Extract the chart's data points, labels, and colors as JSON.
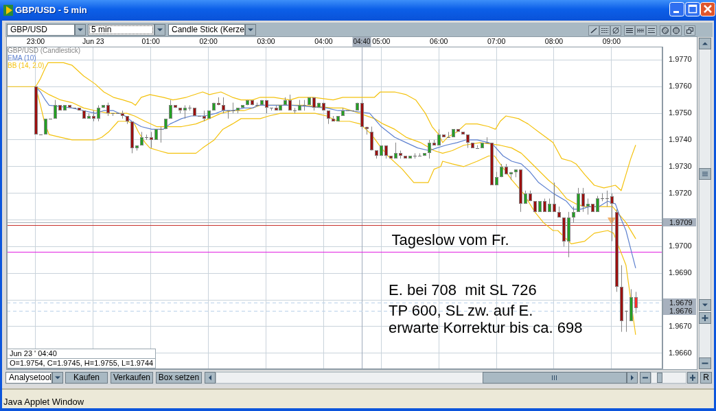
{
  "chart_data": {
    "type": "candlestick",
    "title": "GBP/USD - 5 min",
    "legend": "top left",
    "grid": true,
    "xlim": [
      "--06-22T22:30",
      "--06-23T09:53"
    ],
    "xticks": [
      {
        "value": "--06-22T23:00",
        "label": "23:00"
      },
      {
        "value": "--06-23T00:00",
        "label": "Jun 23"
      },
      {
        "value": "--06-23T01:00",
        "label": "01:00"
      },
      {
        "value": "--06-23T02:00",
        "label": "02:00"
      },
      {
        "value": "--06-23T03:00",
        "label": "03:00"
      },
      {
        "value": "--06-23T04:00",
        "label": "04:00"
      },
      {
        "value": "--06-23T05:00",
        "label": "05:00"
      },
      {
        "value": "--06-23T06:00",
        "label": "06:00"
      },
      {
        "value": "--06-23T07:00",
        "label": "07:00"
      },
      {
        "value": "--06-23T08:00",
        "label": "08:00"
      },
      {
        "value": "--06-23T09:00",
        "label": "09:00"
      }
    ],
    "ylim": [
      1.9654,
      1.9775
    ],
    "yticks": [
      {
        "value": 1.966,
        "label": "1.9660"
      },
      {
        "value": 1.967,
        "label": "1.9670"
      },
      {
        "value": 1.968,
        "label": null
      },
      {
        "value": 1.969,
        "label": "1.9690"
      },
      {
        "value": 1.97,
        "label": "1.9700"
      },
      {
        "value": 1.971,
        "label": null
      },
      {
        "value": 1.972,
        "label": "1.9720"
      },
      {
        "value": 1.973,
        "label": "1.9730"
      },
      {
        "value": 1.974,
        "label": "1.9740"
      },
      {
        "value": 1.975,
        "label": "1.9750"
      },
      {
        "value": 1.976,
        "label": "1.9760"
      },
      {
        "value": 1.977,
        "label": "1.9770"
      }
    ],
    "series": [
      {
        "name": "GBP/USD (Candlestick)",
        "color": "#858585",
        "x": [
          "--06-22T23:00",
          "--06-22T23:05",
          "--06-22T23:10",
          "--06-22T23:15",
          "--06-22T23:20",
          "--06-22T23:25",
          "--06-22T23:30",
          "--06-22T23:35",
          "--06-22T23:40",
          "--06-22T23:45",
          "--06-22T23:50",
          "--06-22T23:55",
          "--06-23T00:00",
          "--06-23T00:05",
          "--06-23T00:10",
          "--06-23T00:15",
          "--06-23T00:20",
          "--06-23T00:25",
          "--06-23T00:30",
          "--06-23T00:35",
          "--06-23T00:40",
          "--06-23T00:45",
          "--06-23T00:50",
          "--06-23T00:55",
          "--06-23T01:00",
          "--06-23T01:05",
          "--06-23T01:10",
          "--06-23T01:15",
          "--06-23T01:20",
          "--06-23T01:25",
          "--06-23T01:30",
          "--06-23T01:35",
          "--06-23T01:40",
          "--06-23T01:45",
          "--06-23T01:50",
          "--06-23T01:55",
          "--06-23T02:00",
          "--06-23T02:05",
          "--06-23T02:10",
          "--06-23T02:15",
          "--06-23T02:20",
          "--06-23T02:25",
          "--06-23T02:30",
          "--06-23T02:35",
          "--06-23T02:40",
          "--06-23T02:45",
          "--06-23T02:50",
          "--06-23T02:55",
          "--06-23T03:00",
          "--06-23T03:05",
          "--06-23T03:10",
          "--06-23T03:15",
          "--06-23T03:20",
          "--06-23T03:25",
          "--06-23T03:30",
          "--06-23T03:35",
          "--06-23T03:40",
          "--06-23T03:45",
          "--06-23T03:50",
          "--06-23T03:55",
          "--06-23T04:00",
          "--06-23T04:05",
          "--06-23T04:10",
          "--06-23T04:15",
          "--06-23T04:20",
          "--06-23T04:25",
          "--06-23T04:30",
          "--06-23T04:35",
          "--06-23T04:40",
          "--06-23T04:45",
          "--06-23T04:50",
          "--06-23T04:55",
          "--06-23T05:00",
          "--06-23T05:05",
          "--06-23T05:10",
          "--06-23T05:15",
          "--06-23T05:20",
          "--06-23T05:25",
          "--06-23T05:30",
          "--06-23T05:35",
          "--06-23T05:40",
          "--06-23T05:45",
          "--06-23T05:50",
          "--06-23T05:55",
          "--06-23T06:00",
          "--06-23T06:05",
          "--06-23T06:10",
          "--06-23T06:15",
          "--06-23T06:20",
          "--06-23T06:25",
          "--06-23T06:30",
          "--06-23T06:35",
          "--06-23T06:40",
          "--06-23T06:45",
          "--06-23T06:50",
          "--06-23T06:55",
          "--06-23T07:00",
          "--06-23T07:05",
          "--06-23T07:10",
          "--06-23T07:15",
          "--06-23T07:20",
          "--06-23T07:25",
          "--06-23T07:30",
          "--06-23T07:35",
          "--06-23T07:40",
          "--06-23T07:45",
          "--06-23T07:50",
          "--06-23T07:55",
          "--06-23T08:00",
          "--06-23T08:05",
          "--06-23T08:10",
          "--06-23T08:15",
          "--06-23T08:20",
          "--06-23T08:25",
          "--06-23T08:30",
          "--06-23T08:35",
          "--06-23T08:40",
          "--06-23T08:45",
          "--06-23T08:50",
          "--06-23T08:55",
          "--06-23T09:00",
          "--06-23T09:05",
          "--06-23T09:10",
          "--06-23T09:15",
          "--06-23T09:20",
          "--06-23T09:25"
        ],
        "ohlc": [
          [
            1.976,
            1.976,
            1.9742,
            1.9742
          ],
          [
            1.9742,
            1.9742,
            1.9742,
            1.9742
          ],
          [
            1.9742,
            1.9748,
            1.9742,
            1.9748
          ],
          [
            1.9748,
            1.9748,
            1.9748,
            1.9748
          ],
          [
            1.9748,
            1.9755,
            1.9748,
            1.9753
          ],
          [
            1.9753,
            1.9753,
            1.9751,
            1.9751
          ],
          [
            1.9751,
            1.9753,
            1.9751,
            1.9753
          ],
          [
            1.9753,
            1.9753,
            1.9752,
            1.9752
          ],
          [
            1.9752,
            1.9752,
            1.9752,
            1.9752
          ],
          [
            1.9752,
            1.9752,
            1.9751,
            1.9751
          ],
          [
            1.9751,
            1.9751,
            1.9748,
            1.9748
          ],
          [
            1.9748,
            1.975,
            1.9748,
            1.9749
          ],
          [
            1.9749,
            1.9751,
            1.9747,
            1.9748
          ],
          [
            1.9748,
            1.9753,
            1.9747,
            1.9752
          ],
          [
            1.9752,
            1.9753,
            1.9752,
            1.9753
          ],
          [
            1.9753,
            1.9754,
            1.9749,
            1.975
          ],
          [
            1.975,
            1.975,
            1.9749,
            1.975
          ],
          [
            1.975,
            1.975,
            1.975,
            1.975
          ],
          [
            1.975,
            1.9751,
            1.9748,
            1.9749
          ],
          [
            1.9749,
            1.9749,
            1.9746,
            1.9747
          ],
          [
            1.9747,
            1.9747,
            1.9735,
            1.9737
          ],
          [
            1.9737,
            1.9738,
            1.9736,
            1.9738
          ],
          [
            1.9738,
            1.9743,
            1.9738,
            1.9741
          ],
          [
            1.9741,
            1.9742,
            1.974,
            1.9741
          ],
          [
            1.9741,
            1.9743,
            1.9737,
            1.974
          ],
          [
            1.974,
            1.9744,
            1.974,
            1.9744
          ],
          [
            1.9744,
            1.9745,
            1.9739,
            1.9744
          ],
          [
            1.9744,
            1.9748,
            1.9744,
            1.9748
          ],
          [
            1.9748,
            1.9755,
            1.9748,
            1.9753
          ],
          [
            1.9753,
            1.9753,
            1.9752,
            1.9752
          ],
          [
            1.9752,
            1.9752,
            1.975,
            1.9751
          ],
          [
            1.9751,
            1.9753,
            1.9748,
            1.9752
          ],
          [
            1.9752,
            1.9753,
            1.9751,
            1.9752
          ],
          [
            1.9752,
            1.9752,
            1.9749,
            1.9749
          ],
          [
            1.9749,
            1.9749,
            1.9749,
            1.9749
          ],
          [
            1.9749,
            1.9751,
            1.9747,
            1.9748
          ],
          [
            1.9748,
            1.9751,
            1.9748,
            1.9751
          ],
          [
            1.9751,
            1.9754,
            1.9751,
            1.9754
          ],
          [
            1.9754,
            1.9756,
            1.9753,
            1.9753
          ],
          [
            1.9753,
            1.9756,
            1.975,
            1.9751
          ],
          [
            1.9751,
            1.9751,
            1.9748,
            1.9751
          ],
          [
            1.9751,
            1.9754,
            1.975,
            1.9751
          ],
          [
            1.9751,
            1.9752,
            1.975,
            1.9752
          ],
          [
            1.9752,
            1.9753,
            1.9752,
            1.9753
          ],
          [
            1.9753,
            1.9755,
            1.9753,
            1.9755
          ],
          [
            1.9755,
            1.9755,
            1.9753,
            1.9753
          ],
          [
            1.9753,
            1.9754,
            1.9753,
            1.9753
          ],
          [
            1.9753,
            1.9755,
            1.9753,
            1.9755
          ],
          [
            1.9755,
            1.9755,
            1.975,
            1.9752
          ],
          [
            1.9752,
            1.9752,
            1.9751,
            1.9752
          ],
          [
            1.9752,
            1.9753,
            1.9751,
            1.9751
          ],
          [
            1.9751,
            1.9753,
            1.9751,
            1.9753
          ],
          [
            1.9753,
            1.9756,
            1.9753,
            1.9755
          ],
          [
            1.9755,
            1.9757,
            1.9751,
            1.9751
          ],
          [
            1.9751,
            1.9752,
            1.975,
            1.9751
          ],
          [
            1.9751,
            1.9755,
            1.9751,
            1.9753
          ],
          [
            1.9753,
            1.9755,
            1.9751,
            1.9753
          ],
          [
            1.9753,
            1.9756,
            1.9753,
            1.9756
          ],
          [
            1.9756,
            1.9756,
            1.9751,
            1.9752
          ],
          [
            1.9752,
            1.9754,
            1.9752,
            1.9754
          ],
          [
            1.9754,
            1.9754,
            1.9751,
            1.9751
          ],
          [
            1.9751,
            1.9751,
            1.9746,
            1.9748
          ],
          [
            1.9748,
            1.9749,
            1.9747,
            1.9747
          ],
          [
            1.9747,
            1.9749,
            1.9747,
            1.9749
          ],
          [
            1.9749,
            1.9752,
            1.9749,
            1.9751
          ],
          [
            1.9751,
            1.9751,
            1.9751,
            1.9751
          ],
          [
            1.9751,
            1.9751,
            1.9751,
            1.9751
          ],
          [
            1.9751,
            1.9754,
            1.9751,
            1.9754
          ],
          [
            1.9754,
            1.9755,
            1.9744,
            1.9745
          ],
          [
            1.9745,
            1.9745,
            1.9742,
            1.9744
          ],
          [
            1.9743,
            1.9745,
            1.9736,
            1.9736
          ],
          [
            1.9736,
            1.9736,
            1.9733,
            1.9734
          ],
          [
            1.9734,
            1.9738,
            1.9734,
            1.9738
          ],
          [
            1.9738,
            1.9738,
            1.9733,
            1.9734
          ],
          [
            1.9734,
            1.9734,
            1.9733,
            1.9733
          ],
          [
            1.9733,
            1.9739,
            1.9733,
            1.9735
          ],
          [
            1.9735,
            1.9736,
            1.9733,
            1.9734
          ],
          [
            1.9734,
            1.9734,
            1.9733,
            1.9733
          ],
          [
            1.9733,
            1.9734,
            1.9733,
            1.9734
          ],
          [
            1.9734,
            1.9735,
            1.9733,
            1.9734
          ],
          [
            1.9734,
            1.9735,
            1.9734,
            1.9734
          ],
          [
            1.9734,
            1.9735,
            1.9734,
            1.9735
          ],
          [
            1.9735,
            1.974,
            1.9733,
            1.9739
          ],
          [
            1.9739,
            1.974,
            1.9738,
            1.9738
          ],
          [
            1.9738,
            1.9744,
            1.9738,
            1.9742
          ],
          [
            1.9742,
            1.9742,
            1.9741,
            1.9741
          ],
          [
            1.9741,
            1.9743,
            1.9741,
            1.9741
          ],
          [
            1.9741,
            1.9744,
            1.9741,
            1.9744
          ],
          [
            1.9744,
            1.9744,
            1.9743,
            1.9743
          ],
          [
            1.9743,
            1.9743,
            1.9742,
            1.9742
          ],
          [
            1.9742,
            1.9742,
            1.9737,
            1.9739
          ],
          [
            1.9739,
            1.9739,
            1.9737,
            1.9737
          ],
          [
            1.9737,
            1.9738,
            1.9737,
            1.9737
          ],
          [
            1.9737,
            1.9739,
            1.9737,
            1.9739
          ],
          [
            1.9739,
            1.9741,
            1.9739,
            1.9739
          ],
          [
            1.9739,
            1.9739,
            1.9723,
            1.9723
          ],
          [
            1.9723,
            1.9728,
            1.9723,
            1.9726
          ],
          [
            1.9726,
            1.9731,
            1.9726,
            1.973
          ],
          [
            1.973,
            1.9731,
            1.9727,
            1.9727
          ],
          [
            1.9727,
            1.9728,
            1.9725,
            1.9728
          ],
          [
            1.9728,
            1.9729,
            1.9726,
            1.9729
          ],
          [
            1.9729,
            1.9729,
            1.9713,
            1.9716
          ],
          [
            1.9716,
            1.9721,
            1.9716,
            1.972
          ],
          [
            1.972,
            1.9721,
            1.9717,
            1.9717
          ],
          [
            1.9717,
            1.9717,
            1.9713,
            1.9713
          ],
          [
            1.9713,
            1.9717,
            1.9713,
            1.9717
          ],
          [
            1.9717,
            1.9718,
            1.9713,
            1.9713
          ],
          [
            1.9713,
            1.9718,
            1.9713,
            1.9716
          ],
          [
            1.9716,
            1.9724,
            1.9713,
            1.9713
          ],
          [
            1.9713,
            1.9715,
            1.9711,
            1.9711
          ],
          [
            1.9711,
            1.9711,
            1.97,
            1.9702
          ],
          [
            1.9702,
            1.9713,
            1.9696,
            1.9711
          ],
          [
            1.9711,
            1.9715,
            1.9709,
            1.9713
          ],
          [
            1.9713,
            1.9722,
            1.9713,
            1.972
          ],
          [
            1.972,
            1.9722,
            1.9713,
            1.9715
          ],
          [
            1.9715,
            1.9718,
            1.9712,
            1.9716
          ],
          [
            1.9716,
            1.9716,
            1.9713,
            1.9713
          ],
          [
            1.9713,
            1.9719,
            1.9713,
            1.9718
          ],
          [
            1.9718,
            1.972,
            1.9717,
            1.9718
          ],
          [
            1.9718,
            1.9721,
            1.9715,
            1.9718
          ],
          [
            1.9719,
            1.972,
            1.9702,
            1.9716
          ],
          [
            1.9713,
            1.9714,
            1.9683,
            1.9685
          ],
          [
            1.9685,
            1.9693,
            1.9668,
            1.9672
          ],
          [
            1.9676,
            1.9676,
            1.9668,
            1.9676
          ],
          [
            1.9672,
            1.9684,
            1.9672,
            1.9681
          ],
          [
            1.9681,
            1.9683,
            1.9675,
            1.9677
          ]
        ],
        "colors": [
          "#9c1010",
          "#707070",
          "#23a023",
          "#707070",
          "#23a023",
          "#9c1010",
          "#23a023",
          "#9c1010",
          "#707070",
          "#9c1010",
          "#9c1010",
          "#23a023",
          "#9c1010",
          "#23a023",
          "#23a023",
          "#9c1010",
          "#707070",
          "#707070",
          "#9c1010",
          "#9c1010",
          "#9c1010",
          "#23a023",
          "#23a023",
          "#707070",
          "#9c1010",
          "#23a023",
          "#707070",
          "#23a023",
          "#23a023",
          "#9c1010",
          "#9c1010",
          "#23a023",
          "#707070",
          "#9c1010",
          "#707070",
          "#9c1010",
          "#23a023",
          "#23a023",
          "#9c1010",
          "#9c1010",
          "#707070",
          "#707070",
          "#23a023",
          "#23a023",
          "#23a023",
          "#9c1010",
          "#707070",
          "#23a023",
          "#9c1010",
          "#707070",
          "#9c1010",
          "#23a023",
          "#23a023",
          "#9c1010",
          "#707070",
          "#23a023",
          "#707070",
          "#23a023",
          "#9c1010",
          "#23a023",
          "#9c1010",
          "#9c1010",
          "#9c1010",
          "#23a023",
          "#23a023",
          "#707070",
          "#707070",
          "#23a023",
          "#9c1010",
          "#9c1010",
          "#9c1010",
          "#9c1010",
          "#23a023",
          "#9c1010",
          "#9c1010",
          "#23a023",
          "#9c1010",
          "#9c1010",
          "#23a023",
          "#707070",
          "#707070",
          "#23a023",
          "#23a023",
          "#9c1010",
          "#23a023",
          "#9c1010",
          "#707070",
          "#23a023",
          "#9c1010",
          "#9c1010",
          "#9c1010",
          "#9c1010",
          "#707070",
          "#23a023",
          "#707070",
          "#9c1010",
          "#23a023",
          "#23a023",
          "#9c1010",
          "#23a023",
          "#23a023",
          "#9c1010",
          "#23a023",
          "#9c1010",
          "#9c1010",
          "#23a023",
          "#9c1010",
          "#23a023",
          "#9c1010",
          "#9c1010",
          "#9c1010",
          "#23a023",
          "#23a023",
          "#23a023",
          "#9c1010",
          "#23a023",
          "#9c1010",
          "#23a023",
          "#707070",
          "#707070",
          "#9c1010",
          "#9c1010",
          "#9c1010",
          "#707070",
          "#23a023",
          "#ff2b2b"
        ]
      },
      {
        "type": "line",
        "name": "EMA (10)",
        "color": "#5d80cf",
        "x": [
          "--06-22T23:00",
          "--06-22T23:05",
          "--06-22T23:10",
          "--06-22T23:14",
          "--06-22T23:38",
          "--06-22T23:50",
          "--06-23T00:02",
          "--06-23T00:11",
          "--06-23T00:21",
          "--06-23T00:33",
          "--06-23T00:40",
          "--06-23T00:50",
          "--06-23T01:01",
          "--06-23T01:13",
          "--06-23T01:20",
          "--06-23T01:32",
          "--06-23T01:42",
          "--06-23T01:56",
          "--06-23T02:08",
          "--06-23T02:15",
          "--06-23T02:25",
          "--06-23T02:37",
          "--06-23T02:46",
          "--06-23T02:52",
          "--06-23T03:03",
          "--06-23T03:27",
          "--06-23T04:03",
          "--06-23T04:15",
          "--06-23T04:27",
          "--06-23T04:48",
          "--06-23T05:00",
          "--06-23T05:14",
          "--06-23T05:26",
          "--06-23T05:38",
          "--06-23T05:50",
          "--06-23T05:58",
          "--06-23T06:07",
          "--06-23T06:19",
          "--06-23T06:28",
          "--06-23T06:40",
          "--06-23T06:52",
          "--06-23T06:57",
          "--06-23T07:07",
          "--06-23T07:16",
          "--06-23T07:26",
          "--06-23T07:35",
          "--06-23T07:44",
          "--06-23T07:59",
          "--06-23T08:13",
          "--06-23T08:20",
          "--06-23T08:28",
          "--06-23T08:37",
          "--06-23T08:47",
          "--06-23T08:56",
          "--06-23T09:04",
          "--06-23T09:08",
          "--06-23T09:15",
          "--06-23T09:20",
          "--06-23T09:25"
        ],
        "values": [
          1.976,
          1.9758,
          1.9755,
          1.9753,
          1.9752,
          1.9751,
          1.975,
          1.9751,
          1.9751,
          1.9749,
          1.9747,
          1.9745,
          1.9744,
          1.9744,
          1.9746,
          1.9748,
          1.9749,
          1.9749,
          1.975,
          1.9751,
          1.9751,
          1.9752,
          1.9752,
          1.9753,
          1.9753,
          1.9753,
          1.9752,
          1.9751,
          1.9751,
          1.975,
          1.9745,
          1.9741,
          1.9739,
          1.9737,
          1.9736,
          1.9737,
          1.9738,
          1.9739,
          1.974,
          1.974,
          1.9739,
          1.9738,
          1.9734,
          1.9732,
          1.9731,
          1.9728,
          1.9724,
          1.972,
          1.9717,
          1.9714,
          1.9714,
          1.9715,
          1.9715,
          1.9717,
          1.9716,
          1.9712,
          1.9706,
          1.9699,
          1.9692
        ]
      },
      {
        "type": "line",
        "name": "BB (14, 2.0)",
        "color": "#f4c20d",
        "x": [
          "--06-22T22:30",
          "--06-22T23:00",
          "--06-22T23:05",
          "--06-22T23:14",
          "--06-22T23:26",
          "--06-22T23:38",
          "--06-22T23:50",
          "--06-23T00:02",
          "--06-23T00:16",
          "--06-23T00:26",
          "--06-23T00:35",
          "--06-23T00:43",
          "--06-23T00:54",
          "--06-23T01:06",
          "--06-23T01:18",
          "--06-23T01:32",
          "--06-23T01:47",
          "--06-23T02:01",
          "--06-23T02:13",
          "--06-23T02:25",
          "--06-23T02:37",
          "--06-23T02:46",
          "--06-23T02:54",
          "--06-23T03:15",
          "--06-23T03:39",
          "--06-23T04:10",
          "--06-23T04:20",
          "--06-23T04:29",
          "--06-23T04:53",
          "--06-23T05:02",
          "--06-23T05:14",
          "--06-23T05:26",
          "--06-23T05:41",
          "--06-23T05:55",
          "--06-23T06:04",
          "--06-23T06:14",
          "--06-23T06:26",
          "--06-23T06:43",
          "--06-23T07:04",
          "--06-23T07:16",
          "--06-23T07:26",
          "--06-23T07:40",
          "--06-23T07:54",
          "--06-23T08:04",
          "--06-23T08:13",
          "--06-23T08:23",
          "--06-23T08:32",
          "--06-23T08:52",
          "--06-23T09:01",
          "--06-23T09:15",
          "--06-23T09:25"
        ],
        "values": [
          1.976,
          1.976,
          1.9759,
          1.9757,
          1.9755,
          1.9754,
          1.9752,
          1.9751,
          1.975,
          1.975,
          1.975,
          1.9749,
          1.9747,
          1.9745,
          1.9745,
          1.9745,
          1.9746,
          1.9748,
          1.975,
          1.9751,
          1.9751,
          1.9752,
          1.9753,
          1.9753,
          1.9753,
          1.9752,
          1.9752,
          1.9751,
          1.9748,
          1.9746,
          1.9744,
          1.9741,
          1.9739,
          1.9736,
          1.9735,
          1.9736,
          1.9738,
          1.9739,
          1.9738,
          1.9737,
          1.9735,
          1.973,
          1.9725,
          1.9722,
          1.9718,
          1.9716,
          1.9715,
          1.9715,
          1.9715,
          1.9709,
          1.9703
        ]
      },
      {
        "type": "line",
        "color": "#f4c20d",
        "x": [
          "--06-22T23:00",
          "--06-22T23:05",
          "--06-22T23:10",
          "--06-22T23:13",
          "--06-22T23:29",
          "--06-22T23:38",
          "--06-22T23:50",
          "--06-23T00:02",
          "--06-23T00:11",
          "--06-23T00:21",
          "--06-23T00:31",
          "--06-23T00:40",
          "--06-23T00:44",
          "--06-23T00:50",
          "--06-23T00:59",
          "--06-23T01:13",
          "--06-23T01:23",
          "--06-23T01:37",
          "--06-23T01:54",
          "--06-23T02:01",
          "--06-23T02:13",
          "--06-23T02:25",
          "--06-23T02:34",
          "--06-23T02:46",
          "--06-23T02:54",
          "--06-23T03:08",
          "--06-23T03:25",
          "--06-23T03:34",
          "--06-23T03:49",
          "--06-23T04:10",
          "--06-23T04:20",
          "--06-23T04:34",
          "--06-23T04:43",
          "--06-23T04:53",
          "--06-23T04:59",
          "--06-23T05:05",
          "--06-23T05:14",
          "--06-23T05:26",
          "--06-23T05:36",
          "--06-23T05:46",
          "--06-23T05:53",
          "--06-23T06:00",
          "--06-23T06:04",
          "--06-23T06:09",
          "--06-23T06:19",
          "--06-23T06:28",
          "--06-23T06:40",
          "--06-23T06:52",
          "--06-23T06:59",
          "--06-23T07:04",
          "--06-23T07:10",
          "--06-23T07:23",
          "--06-23T07:33",
          "--06-23T07:44",
          "--06-23T07:59",
          "--06-23T08:08",
          "--06-23T08:18",
          "--06-23T08:23",
          "--06-23T08:32",
          "--06-23T08:42",
          "--06-23T08:52",
          "--06-23T09:04",
          "--06-23T09:10",
          "--06-23T09:15",
          "--06-23T09:20",
          "--06-23T09:25"
        ],
        "values": [
          1.976,
          1.9763,
          1.9767,
          1.9769,
          1.9769,
          1.9768,
          1.9764,
          1.9761,
          1.9758,
          1.9756,
          1.9755,
          1.9754,
          1.9753,
          1.9756,
          1.9757,
          1.9756,
          1.9755,
          1.9756,
          1.9758,
          1.9757,
          1.9758,
          1.9756,
          1.9755,
          1.9755,
          1.9756,
          1.9756,
          1.9755,
          1.9756,
          1.9756,
          1.9755,
          1.9756,
          1.9756,
          1.9756,
          1.9756,
          1.9758,
          1.9758,
          1.9758,
          1.9757,
          1.9755,
          1.975,
          1.9745,
          1.9742,
          1.9739,
          1.9741,
          1.9743,
          1.9746,
          1.9746,
          1.9745,
          1.9744,
          1.9747,
          1.9749,
          1.9748,
          1.9746,
          1.9743,
          1.9739,
          1.9733,
          1.9732,
          1.9731,
          1.9727,
          1.9723,
          1.9722,
          1.9723,
          1.9721,
          1.9727,
          1.9733,
          1.9738
        ]
      },
      {
        "type": "line",
        "color": "#f4c20d",
        "x": [
          "--06-22T23:00",
          "--06-22T23:05",
          "--06-22T23:09",
          "--06-22T23:14",
          "--06-22T23:26",
          "--06-22T23:38",
          "--06-22T23:50",
          "--06-23T00:02",
          "--06-23T00:09",
          "--06-23T00:16",
          "--06-23T00:26",
          "--06-23T00:35",
          "--06-23T00:43",
          "--06-23T00:47",
          "--06-23T00:54",
          "--06-23T00:59",
          "--06-23T01:08",
          "--06-23T01:18",
          "--06-23T01:32",
          "--06-23T01:47",
          "--06-23T01:54",
          "--06-23T02:06",
          "--06-23T02:15",
          "--06-23T02:25",
          "--06-23T02:34",
          "--06-23T02:46",
          "--06-23T02:54",
          "--06-23T03:03",
          "--06-23T03:15",
          "--06-23T03:27",
          "--06-23T03:51",
          "--06-23T04:03",
          "--06-23T04:15",
          "--06-23T04:27",
          "--06-23T04:38",
          "--06-23T04:50",
          "--06-23T04:58",
          "--06-23T05:07",
          "--06-23T05:22",
          "--06-23T05:34",
          "--06-23T05:41",
          "--06-23T05:49",
          "--06-23T05:55",
          "--06-23T06:02",
          "--06-23T06:04",
          "--06-23T06:14",
          "--06-23T06:26",
          "--06-23T06:40",
          "--06-23T06:52",
          "--06-23T06:58",
          "--06-23T07:16",
          "--06-23T07:28",
          "--06-23T07:40",
          "--06-23T07:49",
          "--06-23T07:59",
          "--06-23T08:04",
          "--06-23T08:18",
          "--06-23T08:32",
          "--06-23T08:42",
          "--06-23T08:56",
          "--06-23T09:02",
          "--06-23T09:15",
          "--06-23T09:25"
        ],
        "values": [
          1.976,
          1.9753,
          1.9747,
          1.9742,
          1.9741,
          1.974,
          1.974,
          1.974,
          1.9741,
          1.9743,
          1.9747,
          1.9747,
          1.9746,
          1.9743,
          1.9739,
          1.9737,
          1.9736,
          1.9735,
          1.9735,
          1.9735,
          1.9737,
          1.974,
          1.9744,
          1.9746,
          1.9748,
          1.9748,
          1.9748,
          1.9749,
          1.975,
          1.975,
          1.975,
          1.9749,
          1.9747,
          1.9747,
          1.9746,
          1.9742,
          1.9738,
          1.9734,
          1.9729,
          1.9724,
          1.9724,
          1.9724,
          1.9729,
          1.973,
          1.9732,
          1.9731,
          1.973,
          1.9732,
          1.9734,
          1.9734,
          1.9725,
          1.972,
          1.9713,
          1.9709,
          1.9706,
          1.9706,
          1.9701,
          1.9702,
          1.9705,
          1.9706,
          1.9705,
          1.9693,
          1.9667
        ]
      },
      {
        "type": "scatter",
        "color": "#f2b06a",
        "marker": "triangle",
        "x": [
          "--06-23T09:00"
        ],
        "values": [
          1.971
        ]
      }
    ],
    "ref_lines": [
      {
        "axis": "x",
        "value": "--06-23T04:40",
        "label": "04:40",
        "color": "#9eaabb"
      },
      {
        "axis": "y",
        "value": 1.9709,
        "label": "1.9709",
        "color": "#a9b0b8"
      },
      {
        "axis": "y",
        "value": 1.9708,
        "color": "#c8302c"
      },
      {
        "axis": "y",
        "value": 1.9698,
        "color": "#e01ee0"
      },
      {
        "axis": "y",
        "value": 1.9679,
        "label": "1.9679",
        "color": "#b9d0e8",
        "line_style": "dashed"
      },
      {
        "axis": "y",
        "value": 1.9676,
        "label": "1.9676",
        "color": "#b9d0e8",
        "line_style": "dashed"
      }
    ],
    "annotations": [
      "GBP/USD",
      "5 min",
      "Candle Stick (Kerze",
      "Jun 23 ' 04:40",
      "O=1.9754, C=1.9745, H=1.9755, L=1.9744",
      "E. bei 708  mit SL 726",
      "TP 600, SL zw. auf E.",
      "erwarte Korrektur bis ca. 698",
      "Analysetool",
      "Kaufen",
      "Verkaufen",
      "Box setzen",
      "R",
      "Java Applet Window",
      {
        "text": "Tageslow vom Fr.",
        "x": "--06-23T06:12",
        "y": 1.9698
      }
    ]
  }
}
